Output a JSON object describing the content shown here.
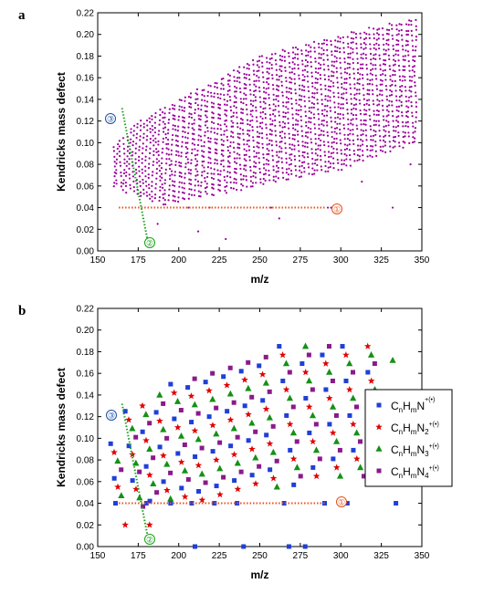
{
  "chart_data": [
    {
      "panel_label": "a",
      "type": "scatter",
      "xlabel": "m/z",
      "ylabel": "Kendricks mass defect",
      "xlim": [
        150,
        350
      ],
      "ylim": [
        0.0,
        0.22
      ],
      "xticks": [
        "150",
        "175",
        "200",
        "225",
        "250",
        "275",
        "300",
        "325",
        "350"
      ],
      "yticks": [
        "0.00",
        "0.02",
        "0.04",
        "0.06",
        "0.08",
        "0.10",
        "0.12",
        "0.14",
        "0.16",
        "0.18",
        "0.20",
        "0.22"
      ],
      "series": [
        {
          "marker": "dot",
          "color": "#9b009b",
          "generator": {
            "x_range": [
              160,
              346
            ],
            "x_step": 2,
            "y_step": 0.0047,
            "lower_edge": [
              [
                160,
                0.058
              ],
              [
                190,
                0.042
              ],
              [
                250,
                0.06
              ],
              [
                300,
                0.075
              ],
              [
                346,
                0.1
              ]
            ],
            "upper_edge": [
              [
                160,
                0.1
              ],
              [
                175,
                0.12
              ],
              [
                200,
                0.14
              ],
              [
                225,
                0.16
              ],
              [
                250,
                0.18
              ],
              [
                275,
                0.19
              ],
              [
                300,
                0.2
              ],
              [
                346,
                0.215
              ]
            ]
          },
          "extra_points": [
            [
              206,
              0.04
            ],
            [
              219,
              0.04
            ],
            [
              257,
              0.04
            ],
            [
              294,
              0.04
            ],
            [
              332,
              0.04
            ],
            [
              187,
              0.025
            ],
            [
              212,
              0.018
            ],
            [
              229,
              0.011
            ],
            [
              262,
              0.03
            ],
            [
              292,
              0.04
            ],
            [
              313,
              0.064
            ],
            [
              343,
              0.08
            ]
          ]
        }
      ],
      "annotations": [
        {
          "label": "①",
          "color": "#e8501a",
          "line": [
            [
              163,
              0.04
            ],
            [
              290,
              0.04
            ]
          ],
          "style": "dotted"
        },
        {
          "label": "②",
          "color": "#18a018",
          "line": [
            [
              165,
              0.132
            ],
            [
              181,
              0.008
            ]
          ],
          "style": "dotted"
        },
        {
          "label": "③",
          "color": "#1a4fa0"
        }
      ]
    },
    {
      "panel_label": "b",
      "type": "scatter",
      "xlabel": "m/z",
      "ylabel": "Kendricks mass defect",
      "xlim": [
        150,
        350
      ],
      "ylim": [
        0.0,
        0.22
      ],
      "xticks": [
        "150",
        "175",
        "200",
        "225",
        "250",
        "275",
        "300",
        "325",
        "350"
      ],
      "yticks": [
        "0.00",
        "0.02",
        "0.04",
        "0.06",
        "0.08",
        "0.10",
        "0.12",
        "0.14",
        "0.16",
        "0.18",
        "0.20",
        "0.22"
      ],
      "legend": {
        "position": "right",
        "entries": [
          {
            "formula": "CnHmN",
            "subscripts": [
              "n",
              "m"
            ],
            "sup": "+(•)",
            "marker": "square",
            "color": "#1f3fd8"
          },
          {
            "formula": "CnHmN2",
            "subscripts": [
              "n",
              "m",
              "2"
            ],
            "sup": "+(•)",
            "marker": "star",
            "color": "#e00000"
          },
          {
            "formula": "CnHmN3",
            "subscripts": [
              "n",
              "m",
              "3"
            ],
            "sup": "+(•)",
            "marker": "triangle",
            "color": "#169016"
          },
          {
            "formula": "CnHmN4",
            "subscripts": [
              "n",
              "m",
              "4"
            ],
            "sup": "+(•)",
            "marker": "square",
            "color": "#8a1a8a"
          }
        ]
      },
      "columns": [
        {
          "x0": 158,
          "top": 0.095,
          "bottom": 0.04
        },
        {
          "x0": 167,
          "top": 0.125,
          "bottom": 0.03
        },
        {
          "x0": 176,
          "top": 0.13,
          "bottom": 0.04
        },
        {
          "x0": 185,
          "top": 0.14,
          "bottom": 0.04
        },
        {
          "x0": 195,
          "top": 0.15,
          "bottom": 0.04
        },
        {
          "x0": 205,
          "top": 0.155,
          "bottom": 0.04
        },
        {
          "x0": 216,
          "top": 0.16,
          "bottom": 0.045
        },
        {
          "x0": 227,
          "top": 0.165,
          "bottom": 0.05
        },
        {
          "x0": 238,
          "top": 0.17,
          "bottom": 0.055
        },
        {
          "x0": 249,
          "top": 0.175,
          "bottom": 0.05
        },
        {
          "x0": 262,
          "top": 0.185,
          "bottom": 0.05
        },
        {
          "x0": 275,
          "top": 0.185,
          "bottom": 0.06
        },
        {
          "x0": 288,
          "top": 0.185,
          "bottom": 0.06
        },
        {
          "x0": 301,
          "top": 0.185,
          "bottom": 0.065
        },
        {
          "x0": 315,
          "top": 0.185,
          "bottom": 0.08
        }
      ],
      "extra_points": [
        {
          "x": 161,
          "y": 0.04,
          "s": 0
        },
        {
          "x": 180,
          "y": 0.04,
          "s": 0
        },
        {
          "x": 195,
          "y": 0.04,
          "s": 0
        },
        {
          "x": 208,
          "y": 0.04,
          "s": 0
        },
        {
          "x": 222,
          "y": 0.04,
          "s": 0
        },
        {
          "x": 236,
          "y": 0.04,
          "s": 0
        },
        {
          "x": 265,
          "y": 0.04,
          "s": 0
        },
        {
          "x": 290,
          "y": 0.04,
          "s": 0
        },
        {
          "x": 304,
          "y": 0.04,
          "s": 0
        },
        {
          "x": 334,
          "y": 0.04,
          "s": 0
        },
        {
          "x": 332,
          "y": 0.172,
          "s": 2
        },
        {
          "x": 167,
          "y": 0.02,
          "s": 1
        },
        {
          "x": 182,
          "y": 0.02,
          "s": 1
        },
        {
          "x": 210,
          "y": 0.0,
          "s": 0
        },
        {
          "x": 240,
          "y": 0.0,
          "s": 0
        },
        {
          "x": 268,
          "y": 0.0,
          "s": 0
        },
        {
          "x": 278,
          "y": 0.0,
          "s": 0
        }
      ],
      "annotations": [
        {
          "label": "①",
          "color": "#e8501a",
          "line": [
            [
              163,
              0.04
            ],
            [
              290,
              0.04
            ]
          ],
          "style": "dotted"
        },
        {
          "label": "②",
          "color": "#18a018",
          "line": [
            [
              165,
              0.132
            ],
            [
              181,
              0.008
            ]
          ],
          "style": "dotted"
        },
        {
          "label": "③",
          "color": "#1a4fa0"
        }
      ]
    }
  ]
}
